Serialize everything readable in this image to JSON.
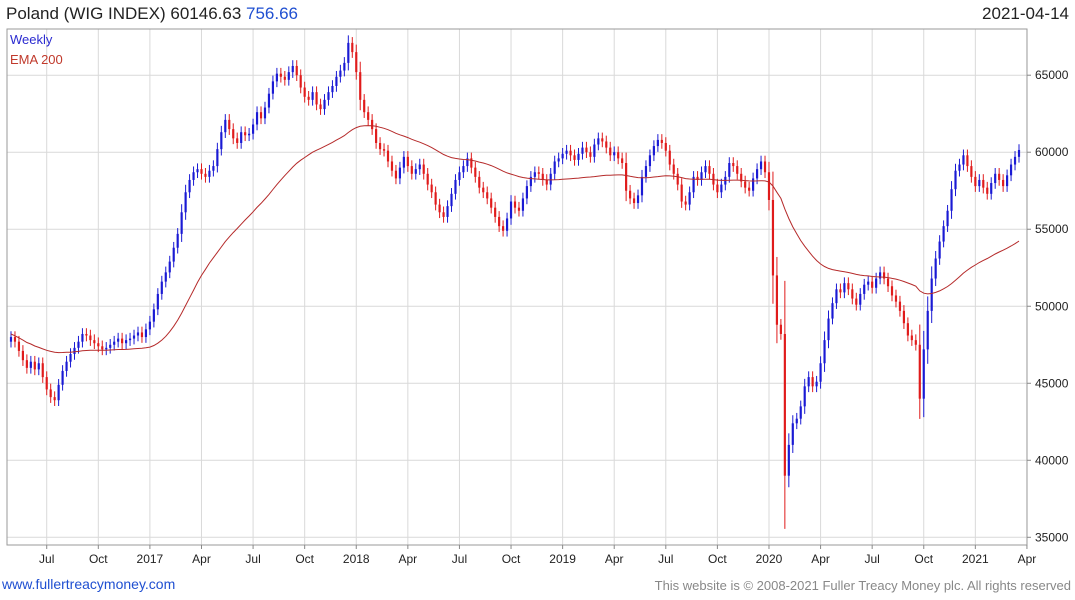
{
  "header": {
    "title_prefix": "Poland (WIG INDEX) 60146.63",
    "change": "756.66",
    "date": "2021-04-14"
  },
  "legend": {
    "weekly": "Weekly",
    "ema": "EMA 200"
  },
  "footer": {
    "site": "www.fullertreacymoney.com",
    "copyright": "This website is © 2008-2021 Fuller Treacy Money plc. All rights reserved"
  },
  "colors": {
    "up": "#1a1ad4",
    "down": "#e01b1b",
    "ema": "#b52a2a",
    "grid": "#d9d9d9"
  },
  "chart_data": {
    "type": "candlestick",
    "ylim": [
      34500,
      68000
    ],
    "y_ticks": [
      35000,
      40000,
      45000,
      50000,
      55000,
      60000,
      65000
    ],
    "x_tick_labels": [
      {
        "label": "Jul",
        "week": 9
      },
      {
        "label": "Oct",
        "week": 22
      },
      {
        "label": "2017",
        "week": 35
      },
      {
        "label": "Apr",
        "week": 48
      },
      {
        "label": "Jul",
        "week": 61
      },
      {
        "label": "Oct",
        "week": 74
      },
      {
        "label": "2018",
        "week": 87
      },
      {
        "label": "Apr",
        "week": 100
      },
      {
        "label": "Jul",
        "week": 113
      },
      {
        "label": "Oct",
        "week": 126
      },
      {
        "label": "2019",
        "week": 139
      },
      {
        "label": "Apr",
        "week": 152
      },
      {
        "label": "Jul",
        "week": 165
      },
      {
        "label": "Oct",
        "week": 178
      },
      {
        "label": "2020",
        "week": 191
      },
      {
        "label": "Apr",
        "week": 204
      },
      {
        "label": "Jul",
        "week": 217
      },
      {
        "label": "Oct",
        "week": 230
      },
      {
        "label": "2021",
        "week": 243
      },
      {
        "label": "Apr",
        "week": 256
      }
    ],
    "close": [
      48000,
      47700,
      47100,
      46500,
      46000,
      46400,
      45900,
      46300,
      45400,
      44600,
      44100,
      43900,
      44900,
      45800,
      46400,
      46900,
      47300,
      47700,
      48200,
      48100,
      47800,
      47600,
      47400,
      47200,
      47300,
      47500,
      47700,
      47900,
      47600,
      47800,
      47900,
      48100,
      48300,
      48000,
      48500,
      49000,
      49800,
      50800,
      51600,
      52200,
      52900,
      53800,
      54700,
      56100,
      57400,
      58200,
      58700,
      58900,
      58600,
      58400,
      58800,
      59100,
      60200,
      61300,
      62100,
      61500,
      60900,
      60600,
      61300,
      61100,
      61200,
      61800,
      62600,
      62200,
      62900,
      63800,
      64600,
      65100,
      64900,
      64700,
      65200,
      65600,
      65000,
      64200,
      63600,
      63400,
      63900,
      63100,
      62800,
      63400,
      63900,
      64300,
      64900,
      65300,
      65800,
      67100,
      66500,
      65200,
      63400,
      62600,
      62100,
      61500,
      60600,
      60200,
      60100,
      59400,
      58800,
      58300,
      59000,
      59700,
      59100,
      58600,
      58900,
      59200,
      58600,
      57900,
      57400,
      56600,
      56100,
      55800,
      56500,
      57300,
      58200,
      58700,
      59100,
      59600,
      59000,
      58400,
      57700,
      57400,
      57000,
      56400,
      55800,
      55200,
      54900,
      55700,
      56800,
      56400,
      56200,
      57000,
      57800,
      58400,
      58700,
      58600,
      58200,
      57900,
      58600,
      59400,
      59600,
      59900,
      60100,
      59800,
      59500,
      59900,
      60300,
      60000,
      59700,
      60500,
      60900,
      60700,
      60300,
      59800,
      60000,
      59600,
      59300,
      57500,
      57000,
      56700,
      57200,
      58400,
      59100,
      59800,
      60400,
      60800,
      60600,
      60100,
      59200,
      58600,
      57900,
      56800,
      56600,
      57400,
      58400,
      58200,
      58700,
      59100,
      58600,
      57900,
      57400,
      57900,
      58400,
      59300,
      59100,
      58600,
      58100,
      57700,
      57500,
      58300,
      58900,
      59400,
      58700,
      56900,
      52000,
      48800,
      48200,
      39000,
      41000,
      42400,
      42700,
      43500,
      44800,
      45400,
      44800,
      45100,
      46300,
      47800,
      49200,
      50200,
      51100,
      50900,
      51500,
      51100,
      50500,
      50100,
      50800,
      51400,
      51600,
      51200,
      51800,
      52200,
      51800,
      51300,
      50700,
      50300,
      49700,
      48900,
      48100,
      47800,
      47500,
      44000,
      47200,
      49700,
      51800,
      53100,
      54200,
      55200,
      56200,
      57600,
      58800,
      59200,
      59800,
      59100,
      58400,
      57800,
      58200,
      57700,
      57300,
      58000,
      58600,
      58200,
      57800,
      58500,
      59200,
      59700,
      60146.63
    ],
    "ema_200": [
      48200,
      48080,
      47950,
      47800,
      47650,
      47550,
      47420,
      47330,
      47230,
      47140,
      47070,
      47020,
      46990,
      47000,
      47010,
      47020,
      47040,
      47070,
      47110,
      47130,
      47140,
      47150,
      47150,
      47150,
      47150,
      47160,
      47170,
      47190,
      47190,
      47200,
      47220,
      47240,
      47260,
      47270,
      47300,
      47350,
      47450,
      47600,
      47800,
      48050,
      48350,
      48700,
      49100,
      49550,
      50050,
      50550,
      51050,
      51550,
      52000,
      52400,
      52800,
      53150,
      53500,
      53850,
      54200,
      54500,
      54780,
      55050,
      55330,
      55600,
      55860,
      56130,
      56420,
      56680,
      56960,
      57260,
      57580,
      57900,
      58200,
      58480,
      58760,
      59040,
      59280,
      59480,
      59660,
      59830,
      60000,
      60130,
      60250,
      60380,
      60510,
      60640,
      60790,
      60930,
      61080,
      61280,
      61460,
      61600,
      61680,
      61720,
      61730,
      61720,
      61680,
      61620,
      61550,
      61460,
      61350,
      61230,
      61130,
      61050,
      60950,
      60840,
      60740,
      60650,
      60550,
      60430,
      60300,
      60160,
      60000,
      59850,
      59740,
      59650,
      59600,
      59560,
      59530,
      59520,
      59480,
      59430,
      59360,
      59300,
      59220,
      59130,
      59020,
      58900,
      58770,
      58660,
      58580,
      58500,
      58420,
      58360,
      58320,
      58290,
      58270,
      58250,
      58230,
      58200,
      58200,
      58210,
      58220,
      58240,
      58260,
      58280,
      58300,
      58320,
      58350,
      58370,
      58390,
      58420,
      58450,
      58480,
      58500,
      58510,
      58520,
      58530,
      58530,
      58490,
      58440,
      58390,
      58350,
      58340,
      58340,
      58360,
      58390,
      58420,
      58450,
      58470,
      58460,
      58440,
      58410,
      58350,
      58290,
      58260,
      58250,
      58240,
      58240,
      58250,
      58240,
      58220,
      58190,
      58170,
      58170,
      58180,
      58190,
      58190,
      58180,
      58160,
      58140,
      58130,
      58140,
      58150,
      58140,
      58070,
      57800,
      57400,
      57000,
      56300,
      55700,
      55150,
      54700,
      54270,
      53900,
      53570,
      53250,
      52970,
      52740,
      52580,
      52460,
      52380,
      52330,
      52280,
      52240,
      52190,
      52130,
      52070,
      52020,
      51990,
      51970,
      51930,
      51910,
      51900,
      51890,
      51860,
      51810,
      51760,
      51690,
      51610,
      51510,
      51410,
      51300,
      51000,
      50850,
      50800,
      50830,
      50900,
      51000,
      51130,
      51280,
      51470,
      51690,
      51910,
      52150,
      52350,
      52530,
      52680,
      52840,
      52980,
      53100,
      53240,
      53390,
      53520,
      53640,
      53770,
      53910,
      54060,
      54230
    ]
  }
}
